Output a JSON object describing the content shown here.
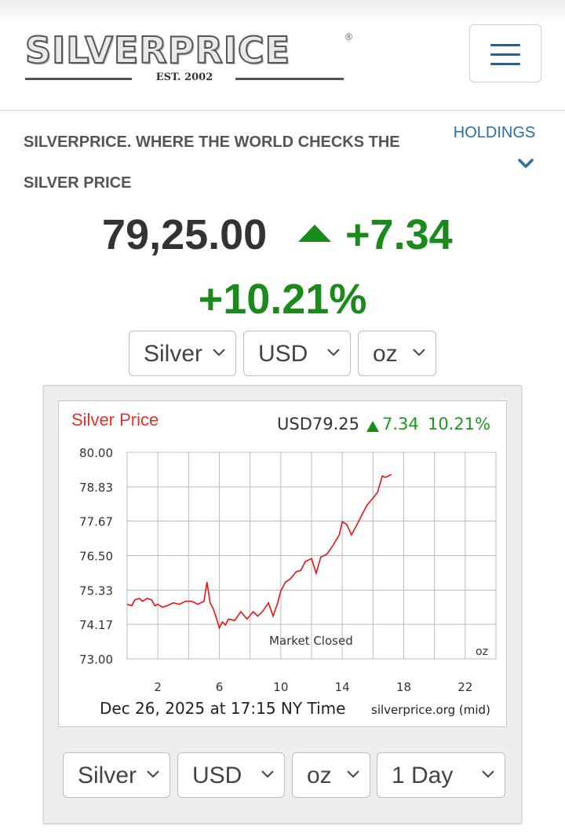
{
  "header": {
    "logo_text": "SILVERPRICE",
    "logo_reg": "®",
    "logo_est": "EST. 2002",
    "menu_icon": "hamburger-menu-icon"
  },
  "tagline": "SILVERPRICE. WHERE THE WORLD CHECKS THE SILVER PRICE",
  "holdings": {
    "label": "HOLDINGS",
    "icon": "chevron-down-icon"
  },
  "price": {
    "value": "79,25.00",
    "change": "+7.34",
    "percent": "+10.21%",
    "direction_icon": "triangle-up-icon",
    "up_color": "#1a8a1a"
  },
  "top_selects": {
    "metal": "Silver",
    "currency": "USD",
    "unit": "oz"
  },
  "chart": {
    "title": "Silver Price",
    "summary_price": "USD79.25",
    "summary_change": "7.34",
    "summary_percent": "10.21%",
    "market_status": "Market Closed",
    "unit_label": "oz",
    "timestamp": "Dec 26, 2025 at 17:15 NY Time",
    "source": "silverprice.org (mid)",
    "line_color": "#ee1111"
  },
  "bottom_selects": {
    "metal": "Silver",
    "currency": "USD",
    "unit": "oz",
    "range": "1 Day"
  },
  "chart_data": {
    "type": "line",
    "title": "Silver Price",
    "xlabel": "",
    "ylabel": "",
    "xlim": [
      0,
      24
    ],
    "ylim": [
      73.0,
      80.0
    ],
    "x_ticks": [
      2,
      6,
      10,
      14,
      18,
      22
    ],
    "y_ticks": [
      "80.00",
      "78.83",
      "77.67",
      "76.50",
      "75.33",
      "74.17",
      "73.00"
    ],
    "grid": true,
    "series": [
      {
        "color": "#ee1111",
        "x": [
          0,
          0.3,
          0.5,
          0.8,
          1.0,
          1.3,
          1.6,
          1.8,
          2.0,
          2.3,
          2.6,
          3.0,
          3.4,
          3.8,
          4.2,
          4.6,
          5.0,
          5.2,
          5.4,
          5.6,
          5.8,
          6.0,
          6.2,
          6.4,
          6.6,
          7.0,
          7.4,
          7.8,
          8.2,
          8.5,
          8.8,
          9.2,
          9.5,
          9.8,
          10.0,
          10.3,
          10.6,
          11.0,
          11.3,
          11.6,
          12.0,
          12.3,
          12.6,
          13.0,
          13.4,
          13.8,
          14.0,
          14.3,
          14.6,
          15.0,
          15.3,
          15.6,
          16.0,
          16.3,
          16.6,
          16.8,
          17.0,
          17.2
        ],
        "y": [
          74.85,
          74.8,
          75.0,
          75.05,
          74.95,
          75.05,
          75.0,
          74.8,
          74.85,
          74.75,
          74.8,
          74.9,
          74.85,
          74.95,
          74.95,
          74.85,
          74.95,
          75.6,
          74.9,
          74.7,
          74.4,
          74.05,
          74.25,
          74.15,
          74.35,
          74.3,
          74.6,
          74.35,
          74.6,
          74.45,
          74.6,
          74.9,
          74.45,
          74.9,
          75.3,
          75.6,
          75.7,
          75.95,
          76.0,
          76.3,
          76.4,
          75.9,
          76.45,
          76.55,
          76.85,
          77.2,
          77.65,
          77.55,
          77.2,
          77.6,
          77.9,
          78.2,
          78.45,
          78.65,
          79.2,
          79.15,
          79.2,
          79.25
        ]
      }
    ]
  }
}
